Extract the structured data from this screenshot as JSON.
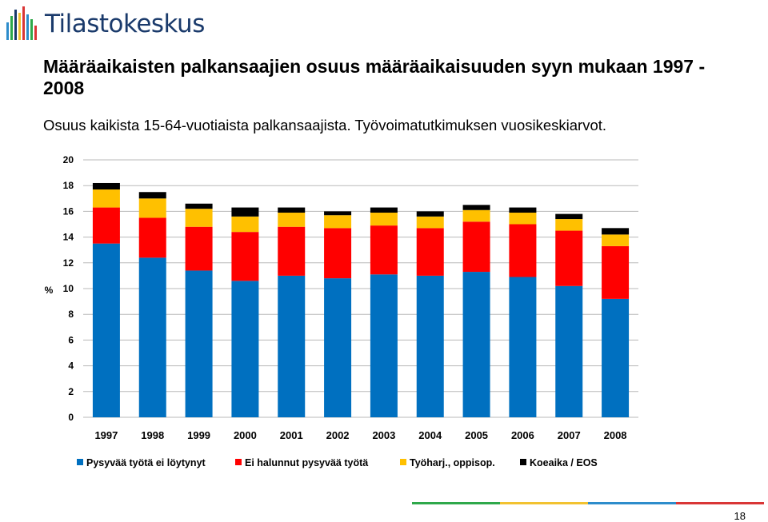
{
  "header": {
    "logo_text": "Tilastokeskus",
    "title": "Määräaikaisten palkansaajien osuus määräaikaisuuden syyn mukaan 1997 - 2008",
    "subtitle": "Osuus kaikista 15-64-vuotiaista palkansaajista. Työvoimatutkimuksen vuosikeskiarvot."
  },
  "footer": {
    "page_number": "18"
  },
  "colors": {
    "blue": "#0070C0",
    "red": "#FF0000",
    "yellow": "#FFC000",
    "black": "#000000",
    "logo_text": "#1a3a6b",
    "footer_green": "#2ea84a",
    "footer_yellow": "#f2c230",
    "footer_blue": "#2d8ccb",
    "footer_red": "#d93636"
  },
  "chart_data": {
    "type": "bar",
    "stacked": true,
    "categories": [
      "1997",
      "1998",
      "1999",
      "2000",
      "2001",
      "2002",
      "2003",
      "2004",
      "2005",
      "2006",
      "2007",
      "2008"
    ],
    "series": [
      {
        "name": "Pysyvää työtä ei löytynyt",
        "color": "#0070C0",
        "values": [
          13.5,
          12.4,
          11.4,
          10.6,
          11.0,
          10.8,
          11.1,
          11.0,
          11.3,
          10.9,
          10.2,
          9.2
        ]
      },
      {
        "name": "Ei halunnut pysyvää työtä",
        "color": "#FF0000",
        "values": [
          2.8,
          3.1,
          3.4,
          3.8,
          3.8,
          3.9,
          3.8,
          3.7,
          3.9,
          4.1,
          4.3,
          4.1
        ]
      },
      {
        "name": "Työharj., oppisop.",
        "color": "#FFC000",
        "values": [
          1.4,
          1.5,
          1.4,
          1.2,
          1.1,
          1.0,
          1.0,
          0.9,
          0.9,
          0.9,
          0.9,
          0.9
        ]
      },
      {
        "name": "Koeaika / EOS",
        "color": "#000000",
        "values": [
          0.5,
          0.5,
          0.4,
          0.7,
          0.4,
          0.3,
          0.4,
          0.4,
          0.4,
          0.4,
          0.4,
          0.5
        ]
      }
    ],
    "ylabel": "%",
    "ylim": [
      0,
      20
    ],
    "yticks": [
      0,
      2,
      4,
      6,
      8,
      10,
      12,
      14,
      16,
      18,
      20
    ],
    "grid": true,
    "legend": "bottom"
  }
}
